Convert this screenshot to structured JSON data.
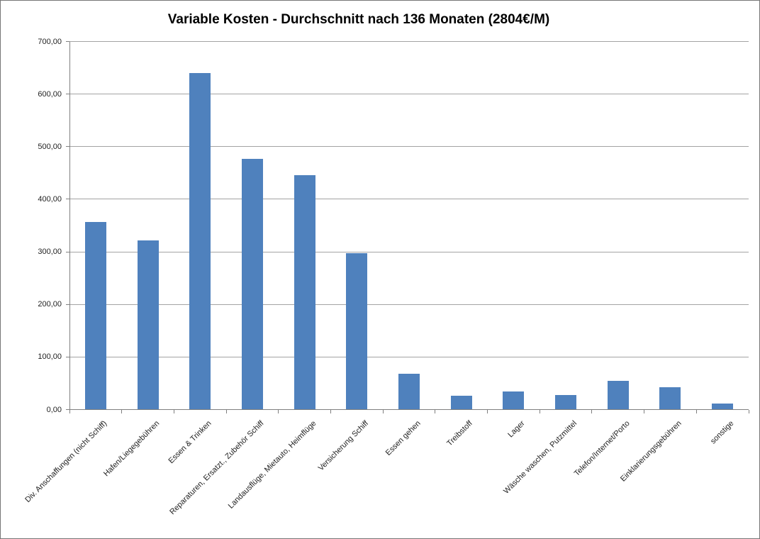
{
  "title": "Variable Kosten - Durchschnitt nach 136 Monaten (2804€/M)",
  "chart_data": {
    "type": "bar",
    "title": "Variable Kosten - Durchschnitt nach 136 Monaten (2804€/M)",
    "categories": [
      "Div. Anschaffungen (nicht Schiff)",
      "Hafen/Liegegebühren",
      "Essen & Trinken",
      "Reparaturen, Ersatzt., Zubehör Schiff",
      "Landausflüge, Mietauto, Heimflüge",
      "Versicherung Schiff",
      "Essen gehen",
      "Treibstoff",
      "Lager",
      "Wäsche waschen, Putzmittel",
      "Telefon/Internet/Porto",
      "Einklarierungsgebühren",
      "sonstige"
    ],
    "values": [
      357,
      322,
      640,
      477,
      446,
      297,
      68,
      26,
      34,
      28,
      54,
      43,
      12
    ],
    "monthly_total_eur": 2804,
    "xlabel": "",
    "ylabel": "",
    "ylim": [
      0,
      700
    ],
    "yticks": [
      0,
      100,
      200,
      300,
      400,
      500,
      600,
      700
    ],
    "ytick_labels": [
      "0,00",
      "100,00",
      "200,00",
      "300,00",
      "400,00",
      "500,00",
      "600,00",
      "700,00"
    ],
    "grid": true,
    "legend": false,
    "label_rotation_deg": 45
  },
  "colors": {
    "bar": "#4F81BD",
    "gridline": "#A3A3A3",
    "axis": "#808080",
    "tick": "#808080",
    "label_text": "#1f1f1f",
    "title_text": "#000000",
    "background": "#FFFFFF",
    "border": "#767676"
  }
}
